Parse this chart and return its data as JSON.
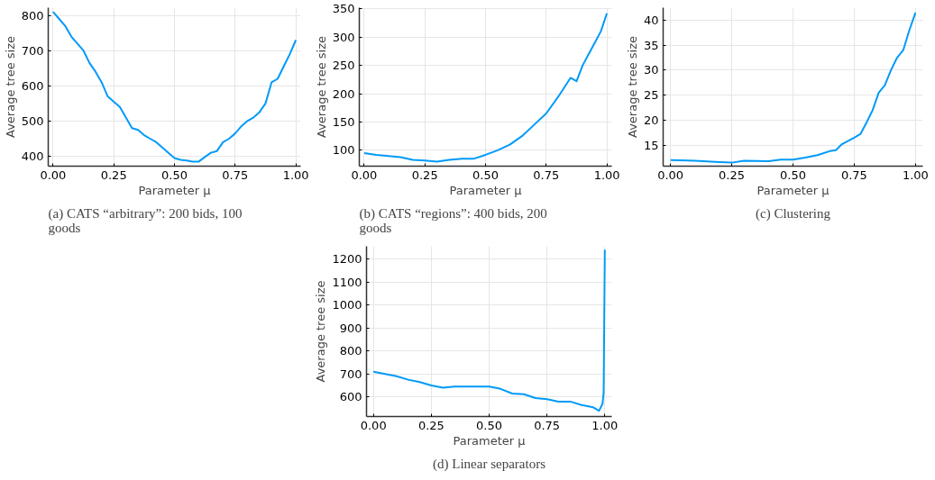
{
  "chart_data": [
    {
      "type": "line",
      "title": "(a) CATS “arbitrary”: 200 bids, 100 goods",
      "xlabel": "Parameter μ",
      "ylabel": "Average tree size",
      "xlim": [
        -0.02,
        1.02
      ],
      "ylim": [
        372,
        822
      ],
      "xticks": [
        {
          "value": 0,
          "label": "0.00"
        },
        {
          "value": 0.25,
          "label": "0.25"
        },
        {
          "value": 0.5,
          "label": "0.50"
        },
        {
          "value": 0.75,
          "label": "0.75"
        },
        {
          "value": 1,
          "label": "1.00"
        }
      ],
      "yticks": [
        400,
        500,
        600,
        700,
        800
      ],
      "grid": true,
      "x": [
        0,
        0.025,
        0.05,
        0.075,
        0.1,
        0.125,
        0.15,
        0.175,
        0.2,
        0.225,
        0.25,
        0.275,
        0.3,
        0.325,
        0.35,
        0.375,
        0.4,
        0.425,
        0.45,
        0.475,
        0.5,
        0.525,
        0.55,
        0.575,
        0.6,
        0.625,
        0.65,
        0.675,
        0.7,
        0.725,
        0.75,
        0.775,
        0.8,
        0.825,
        0.85,
        0.875,
        0.9,
        0.925,
        0.95,
        0.975,
        1.0
      ],
      "series": [
        {
          "color": "#009af9",
          "values": [
            810,
            790,
            770,
            740,
            720,
            700,
            665,
            640,
            610,
            570,
            555,
            540,
            510,
            480,
            475,
            460,
            450,
            440,
            425,
            410,
            395,
            390,
            388,
            385,
            385,
            398,
            410,
            415,
            440,
            450,
            465,
            485,
            500,
            510,
            525,
            550,
            610,
            620,
            655,
            690,
            730
          ]
        }
      ]
    },
    {
      "type": "line",
      "title": "(b) CATS “regions”: 400 bids, 200 goods",
      "xlabel": "Parameter μ",
      "ylabel": "Average tree size",
      "xlim": [
        -0.02,
        1.02
      ],
      "ylim": [
        72,
        352
      ],
      "xticks": [
        {
          "value": 0,
          "label": "0.00"
        },
        {
          "value": 0.25,
          "label": "0.25"
        },
        {
          "value": 0.5,
          "label": "0.50"
        },
        {
          "value": 0.75,
          "label": "0.75"
        },
        {
          "value": 1,
          "label": "1.00"
        }
      ],
      "yticks": [
        100,
        150,
        200,
        250,
        300,
        350
      ],
      "grid": true,
      "x": [
        0,
        0.05,
        0.1,
        0.15,
        0.2,
        0.25,
        0.3,
        0.35,
        0.4,
        0.45,
        0.5,
        0.55,
        0.6,
        0.65,
        0.7,
        0.75,
        0.8,
        0.85,
        0.875,
        0.9,
        0.925,
        0.95,
        0.975,
        1.0
      ],
      "series": [
        {
          "color": "#009af9",
          "values": [
            95,
            92,
            90,
            88,
            83,
            82,
            80,
            83,
            85,
            85,
            92,
            100,
            110,
            125,
            145,
            165,
            195,
            228,
            222,
            250,
            270,
            290,
            310,
            342
          ]
        }
      ]
    },
    {
      "type": "line",
      "title": "(c) Clustering",
      "xlabel": "Parameter μ",
      "ylabel": "Average tree size",
      "xlim": [
        -0.03,
        1.03
      ],
      "ylim": [
        10.8,
        42.5
      ],
      "xticks": [
        {
          "value": 0,
          "label": "0.00"
        },
        {
          "value": 0.25,
          "label": "0.25"
        },
        {
          "value": 0.5,
          "label": "0.50"
        },
        {
          "value": 0.75,
          "label": "0.75"
        },
        {
          "value": 1,
          "label": "1.00"
        }
      ],
      "yticks": [
        15,
        20,
        25,
        30,
        35,
        40
      ],
      "grid": true,
      "x": [
        0,
        0.1,
        0.2,
        0.25,
        0.3,
        0.4,
        0.45,
        0.5,
        0.55,
        0.6,
        0.65,
        0.675,
        0.7,
        0.75,
        0.775,
        0.8,
        0.825,
        0.85,
        0.875,
        0.9,
        0.925,
        0.95,
        0.975,
        1.0
      ],
      "series": [
        {
          "color": "#009af9",
          "values": [
            12,
            11.9,
            11.6,
            11.5,
            11.9,
            11.8,
            12.1,
            12.1,
            12.5,
            13,
            13.8,
            14,
            15.2,
            16.5,
            17.2,
            19.5,
            22,
            25.5,
            27,
            30,
            32.5,
            34,
            38,
            41.5
          ]
        }
      ]
    },
    {
      "type": "line",
      "title": "(d) Linear separators",
      "xlabel": "Parameter μ",
      "ylabel": "Average tree size",
      "xlim": [
        -0.03,
        1.03
      ],
      "ylim": [
        515,
        1255
      ],
      "xticks": [
        {
          "value": 0,
          "label": "0.00"
        },
        {
          "value": 0.25,
          "label": "0.25"
        },
        {
          "value": 0.5,
          "label": "0.50"
        },
        {
          "value": 0.75,
          "label": "0.75"
        },
        {
          "value": 1,
          "label": "1.00"
        }
      ],
      "yticks": [
        600,
        700,
        800,
        900,
        1000,
        1100,
        1200
      ],
      "grid": true,
      "x": [
        0,
        0.05,
        0.1,
        0.15,
        0.2,
        0.25,
        0.3,
        0.35,
        0.4,
        0.45,
        0.5,
        0.55,
        0.6,
        0.65,
        0.7,
        0.75,
        0.8,
        0.85,
        0.9,
        0.95,
        0.975,
        0.99,
        0.995,
        1.0
      ],
      "series": [
        {
          "color": "#009af9",
          "values": [
            710,
            700,
            690,
            675,
            665,
            650,
            640,
            645,
            645,
            645,
            645,
            635,
            615,
            612,
            595,
            590,
            580,
            580,
            565,
            555,
            540,
            570,
            620,
            1240
          ]
        }
      ]
    }
  ]
}
